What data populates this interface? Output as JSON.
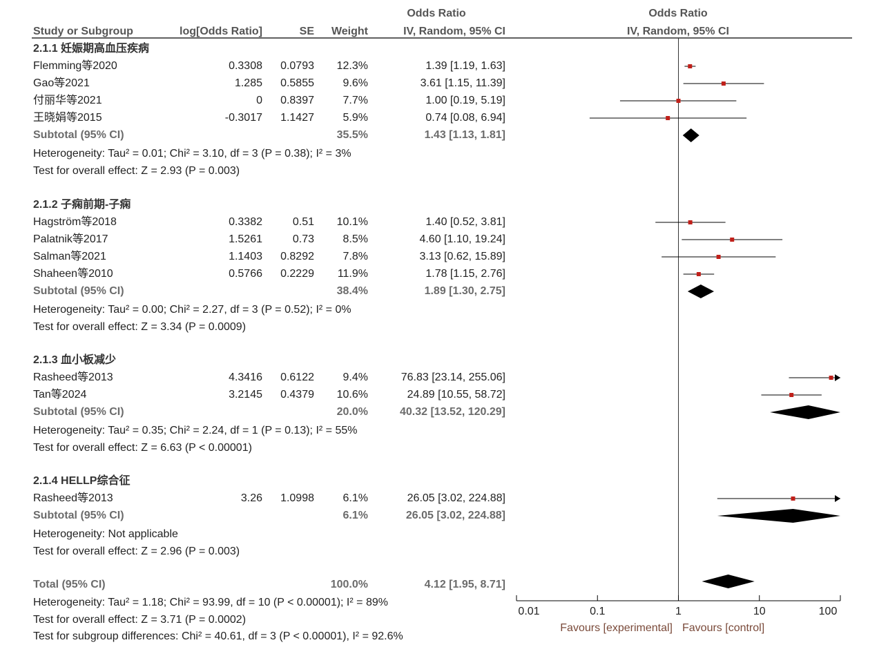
{
  "header": {
    "col_study": "Study or Subgroup",
    "col_logor": "log[Odds Ratio]",
    "col_se": "SE",
    "col_weight": "Weight",
    "col_or_title": "Odds Ratio",
    "col_or_method": "IV, Random, 95% CI",
    "plot_title": "Odds Ratio",
    "plot_method": "IV, Random, 95% CI"
  },
  "groups": [
    {
      "title": "2.1.1 妊娠期高血压疾病",
      "studies": [
        {
          "name": "Flemming等2020",
          "logor": "0.3308",
          "se": "0.0793",
          "weight": "12.3%",
          "ci_text": "1.39 [1.19, 1.63]",
          "or": 1.39,
          "lo": 1.19,
          "hi": 1.63
        },
        {
          "name": "Gao等2021",
          "logor": "1.285",
          "se": "0.5855",
          "weight": "9.6%",
          "ci_text": "3.61 [1.15, 11.39]",
          "or": 3.61,
          "lo": 1.15,
          "hi": 11.39
        },
        {
          "name": "付丽华等2021",
          "logor": "0",
          "se": "0.8397",
          "weight": "7.7%",
          "ci_text": "1.00 [0.19, 5.19]",
          "or": 1.0,
          "lo": 0.19,
          "hi": 5.19
        },
        {
          "name": "王晓娟等2015",
          "logor": "-0.3017",
          "se": "1.1427",
          "weight": "5.9%",
          "ci_text": "0.74 [0.08, 6.94]",
          "or": 0.74,
          "lo": 0.08,
          "hi": 6.94
        }
      ],
      "subtotal": {
        "label": "Subtotal (95% CI)",
        "weight": "35.5%",
        "ci_text": "1.43 [1.13, 1.81]",
        "or": 1.43,
        "lo": 1.13,
        "hi": 1.81
      },
      "heterogeneity": "Heterogeneity: Tau² = 0.01; Chi² = 3.10, df = 3 (P = 0.38); I² = 3%",
      "overall": "Test for overall effect: Z = 2.93 (P = 0.003)"
    },
    {
      "title": "2.1.2 子痫前期-子痫",
      "studies": [
        {
          "name": "Hagström等2018",
          "logor": "0.3382",
          "se": "0.51",
          "weight": "10.1%",
          "ci_text": "1.40 [0.52, 3.81]",
          "or": 1.4,
          "lo": 0.52,
          "hi": 3.81
        },
        {
          "name": "Palatnik等2017",
          "logor": "1.5261",
          "se": "0.73",
          "weight": "8.5%",
          "ci_text": "4.60 [1.10, 19.24]",
          "or": 4.6,
          "lo": 1.1,
          "hi": 19.24
        },
        {
          "name": "Salman等2021",
          "logor": "1.1403",
          "se": "0.8292",
          "weight": "7.8%",
          "ci_text": "3.13 [0.62, 15.89]",
          "or": 3.13,
          "lo": 0.62,
          "hi": 15.89
        },
        {
          "name": "Shaheen等2010",
          "logor": "0.5766",
          "se": "0.2229",
          "weight": "11.9%",
          "ci_text": "1.78 [1.15, 2.76]",
          "or": 1.78,
          "lo": 1.15,
          "hi": 2.76
        }
      ],
      "subtotal": {
        "label": "Subtotal (95% CI)",
        "weight": "38.4%",
        "ci_text": "1.89 [1.30, 2.75]",
        "or": 1.89,
        "lo": 1.3,
        "hi": 2.75
      },
      "heterogeneity": "Heterogeneity: Tau² = 0.00; Chi² = 2.27, df = 3 (P = 0.52); I² = 0%",
      "overall": "Test for overall effect: Z = 3.34 (P = 0.0009)"
    },
    {
      "title": "2.1.3 血小板减少",
      "studies": [
        {
          "name": "Rasheed等2013",
          "logor": "4.3416",
          "se": "0.6122",
          "weight": "9.4%",
          "ci_text": "76.83 [23.14, 255.06]",
          "or": 76.83,
          "lo": 23.14,
          "hi": 255.06
        },
        {
          "name": "Tan等2024",
          "logor": "3.2145",
          "se": "0.4379",
          "weight": "10.6%",
          "ci_text": "24.89 [10.55, 58.72]",
          "or": 24.89,
          "lo": 10.55,
          "hi": 58.72
        }
      ],
      "subtotal": {
        "label": "Subtotal (95% CI)",
        "weight": "20.0%",
        "ci_text": "40.32 [13.52, 120.29]",
        "or": 40.32,
        "lo": 13.52,
        "hi": 120.29
      },
      "heterogeneity": "Heterogeneity: Tau² = 0.35; Chi² = 2.24, df = 1 (P = 0.13); I² = 55%",
      "overall": "Test for overall effect: Z = 6.63 (P < 0.00001)"
    },
    {
      "title": "2.1.4 HELLP综合征",
      "studies": [
        {
          "name": "Rasheed等2013",
          "logor": "3.26",
          "se": "1.0998",
          "weight": "6.1%",
          "ci_text": "26.05 [3.02, 224.88]",
          "or": 26.05,
          "lo": 3.02,
          "hi": 224.88
        }
      ],
      "subtotal": {
        "label": "Subtotal (95% CI)",
        "weight": "6.1%",
        "ci_text": "26.05 [3.02, 224.88]",
        "or": 26.05,
        "lo": 3.02,
        "hi": 224.88
      },
      "heterogeneity": "Heterogeneity: Not applicable",
      "overall": "Test for overall effect: Z = 2.96 (P = 0.003)"
    }
  ],
  "total": {
    "label": "Total (95% CI)",
    "weight": "100.0%",
    "ci_text": "4.12 [1.95, 8.71]",
    "or": 4.12,
    "lo": 1.95,
    "hi": 8.71,
    "heterogeneity": "Heterogeneity: Tau² = 1.18; Chi² = 93.99, df = 10 (P < 0.00001); I² = 89%",
    "overall": "Test for overall effect: Z = 3.71 (P = 0.0002)",
    "subgroup": "Test for subgroup differences: Chi² = 40.61, df = 3 (P < 0.00001), I² = 92.6%"
  },
  "axis": {
    "ticks": [
      0.01,
      0.1,
      1,
      10,
      100
    ],
    "tick_labels": [
      "0.01",
      "0.1",
      "1",
      "10",
      "100"
    ],
    "left_label": "Favours [experimental]",
    "right_label": "Favours [control]"
  },
  "chart_data": {
    "type": "forest",
    "scale": "log",
    "xlim": [
      0.01,
      100
    ],
    "reference_line": 1,
    "colors": {
      "study_marker": "#c0201a",
      "diamond": "#000000",
      "line": "#000000"
    }
  }
}
